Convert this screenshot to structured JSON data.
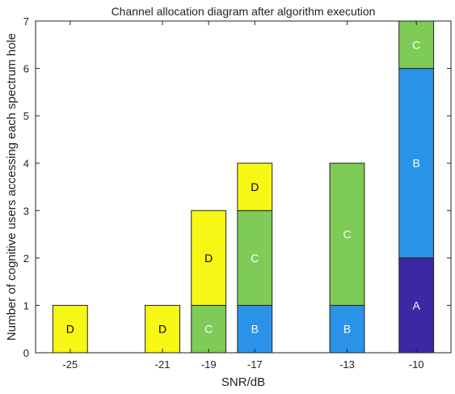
{
  "chart_data": {
    "type": "bar",
    "stacked": true,
    "title": "Channel allocation diagram after algorithm execution",
    "xlabel": "SNR/dB",
    "ylabel": "Number of cognitive users accessing each spectrum hole",
    "xlim": [
      -26.5,
      -8.5
    ],
    "ylim": [
      0,
      7
    ],
    "xticks": [
      -25,
      -21,
      -19,
      -17,
      -13,
      -10
    ],
    "yticks": [
      0,
      1,
      2,
      3,
      4,
      5,
      6,
      7
    ],
    "grid": false,
    "bar_width": 1.5,
    "colors": {
      "A": "#3d28a3",
      "B": "#2a93e7",
      "C": "#7ecb57",
      "D": "#f7f716",
      "outline": "#222222"
    },
    "bars": [
      {
        "x": -25,
        "segments": [
          {
            "label": "D",
            "value": 1
          }
        ]
      },
      {
        "x": -21,
        "segments": [
          {
            "label": "D",
            "value": 1
          }
        ]
      },
      {
        "x": -19,
        "segments": [
          {
            "label": "C",
            "value": 1
          },
          {
            "label": "D",
            "value": 2
          }
        ]
      },
      {
        "x": -17,
        "segments": [
          {
            "label": "B",
            "value": 1
          },
          {
            "label": "C",
            "value": 2
          },
          {
            "label": "D",
            "value": 1
          }
        ]
      },
      {
        "x": -13,
        "segments": [
          {
            "label": "B",
            "value": 1
          },
          {
            "label": "C",
            "value": 3
          }
        ]
      },
      {
        "x": -10,
        "segments": [
          {
            "label": "A",
            "value": 2
          },
          {
            "label": "B",
            "value": 4
          },
          {
            "label": "C",
            "value": 1
          }
        ]
      }
    ]
  }
}
